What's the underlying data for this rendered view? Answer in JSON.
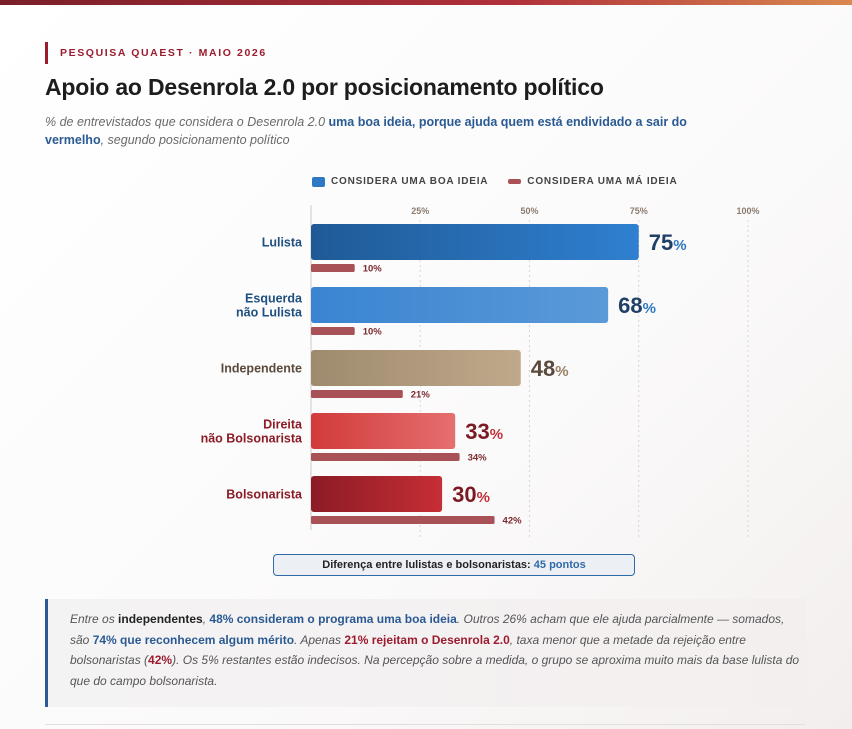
{
  "header": {
    "eyebrow": "PESQUISA QUAEST · MAIO 2026",
    "title": "Apoio ao Desenrola 2.0 por posicionamento político",
    "subtitle_pre": "% de entrevistados que considera o Desenrola 2.0 ",
    "subtitle_bold": "uma boa ideia, porque ajuda quem está endividado a sair do vermelho",
    "subtitle_post": ", segundo posicionamento político"
  },
  "legend": {
    "boa": "CONSIDERA UMA BOA IDEIA",
    "ma": "CONSIDERA UMA MÁ IDEIA"
  },
  "chart_data": {
    "type": "bar",
    "orientation": "horizontal",
    "categories": [
      "Lulista",
      "Esquerda\nnão Lulista",
      "Independente",
      "Direita\nnão Bolsonarista",
      "Bolsonarista"
    ],
    "series": [
      {
        "name": "CONSIDERA UMA BOA IDEIA",
        "values": [
          75,
          68,
          48,
          33,
          30
        ]
      },
      {
        "name": "CONSIDERA UMA MÁ IDEIA",
        "values": [
          10,
          10,
          21,
          34,
          42
        ]
      }
    ],
    "xticks": [
      "25%",
      "50%",
      "75%",
      "100%"
    ],
    "xtick_values": [
      25,
      50,
      75,
      100
    ],
    "xlim": [
      0,
      100
    ],
    "grid": true,
    "legend_position": "top",
    "value_suffix": "%",
    "colors": {
      "boa": [
        [
          "#1f5a96",
          "#2f80d0"
        ],
        [
          "#3a84d1",
          "#5a9ad8"
        ],
        [
          "#9e8a6e",
          "#c0a98b"
        ],
        [
          "#d23a3a",
          "#e56f6f"
        ],
        [
          "#8c1b25",
          "#c62e35"
        ]
      ],
      "ma": "#a85156",
      "label": [
        "#1f4f7f",
        "#1f4f7f",
        "#5b4a3c",
        "#8b1c25",
        "#8b1c25"
      ],
      "value": [
        "#1f3f66",
        "#1f3f66",
        "#5b4a3c",
        "#7a1a22",
        "#7a1a22"
      ],
      "pct": [
        "#2f78c4",
        "#2f78c4",
        "#9a8166",
        "#c0303a",
        "#c0303a"
      ],
      "grid": "#d9d4d4",
      "tick": "#8a7b6e",
      "ma_label": "#7a2a2e"
    }
  },
  "callout": {
    "label": "Diferença entre lulistas e bolsonaristas: ",
    "value": "45 pontos"
  },
  "note": {
    "p1": "Entre os ",
    "b1": "independentes",
    "p2": ", ",
    "b2": "48% consideram o programa uma boa ideia",
    "p3": ". Outros 26% acham que ele ajuda parcialmente — somados, são ",
    "b3": "74% que reconhecem algum mérito",
    "p4": ". Apenas ",
    "b4": "21% rejeitam o Desenrola 2.0",
    "p5": ", taxa menor que a metade da rejeição entre bolsonaristas (",
    "b5": "42%",
    "p6": "). Os 5% restantes estão indecisos. Na percepção sobre a medida, o grupo se aproxima muito mais da base lulista do que do campo bolsonarista."
  }
}
